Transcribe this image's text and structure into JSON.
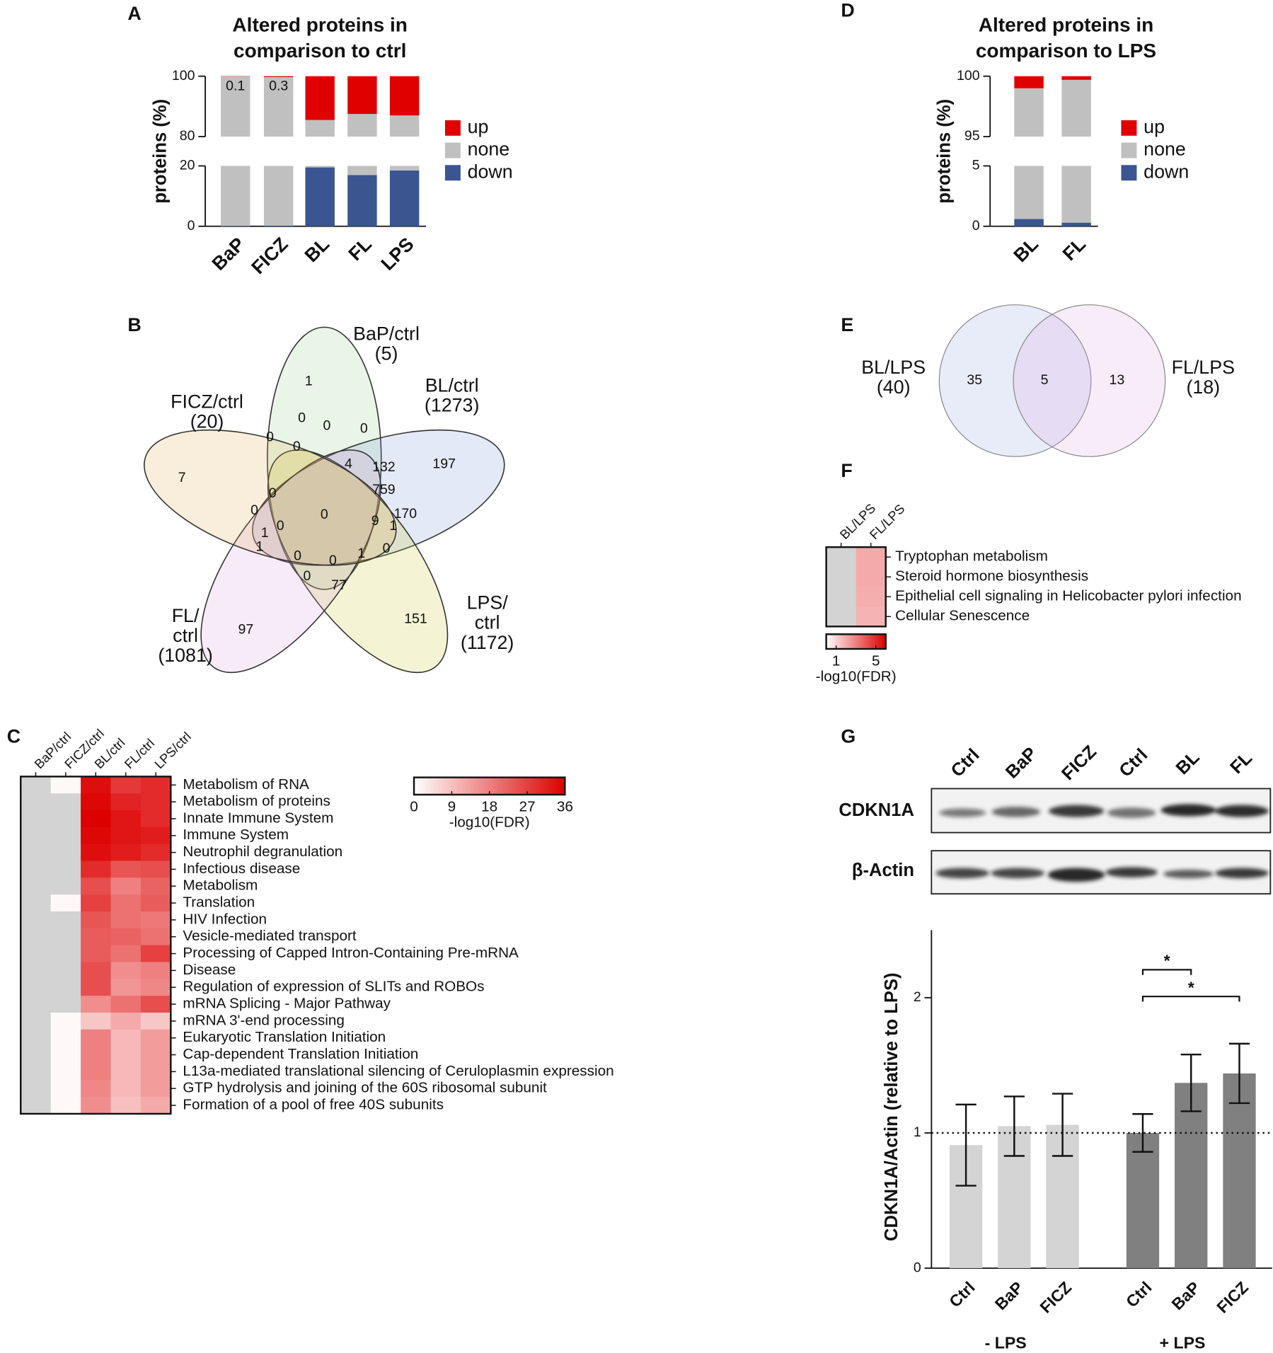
{
  "panel_labels": [
    "A",
    "B",
    "C",
    "D",
    "E",
    "F",
    "G"
  ],
  "chart_data": [
    {
      "type": "bar",
      "stacked": true,
      "title": [
        "Altered proteins in",
        "comparison to ctrl"
      ],
      "ylabel": "proteins (%)",
      "categories": [
        "BaP",
        "FICZ",
        "BL",
        "FL",
        "LPS"
      ],
      "series": [
        {
          "name": "up",
          "color": "#e00000",
          "values": [
            0.1,
            0.3,
            14.5,
            12.5,
            13
          ]
        },
        {
          "name": "none",
          "color": "#c0c0c0",
          "values": [
            99.8,
            99.5,
            66,
            70.5,
            68.5
          ]
        },
        {
          "name": "down",
          "color": "#3a5590",
          "values": [
            0.1,
            0.2,
            19.5,
            17,
            18.5
          ]
        }
      ],
      "ylim": [
        0,
        100
      ],
      "ybreak": [
        20,
        80
      ],
      "yticks": [
        0,
        20,
        80,
        100
      ],
      "data_labels": true
    },
    {
      "type": "heatmap",
      "columns": [
        "BaP/ctrl",
        "FICZ/ctrl",
        "BL/ctrl",
        "FL/ctrl",
        "LPS/ctrl"
      ],
      "rows": [
        "Metabolism of RNA",
        "Metabolism of proteins",
        "Innate Immune System",
        "Immune System",
        "Neutrophil degranulation",
        "Infectious disease",
        "Metabolism",
        "Translation",
        "HIV Infection",
        "Vesicle-mediated transport",
        "Processing of Capped Intron-Containing Pre-mRNA",
        "Disease",
        "Regulation of expression of SLITs and ROBOs",
        "mRNA Splicing - Major Pathway",
        "mRNA 3'-end processing",
        "Eukaryotic Translation Initiation",
        "Cap-dependent Translation Initiation",
        "L13a-mediated translational silencing of Ceruloplasmin expression",
        "GTP hydrolysis and joining of the 60S ribosomal subunit",
        "Formation of a pool of free 40S subunits"
      ],
      "values": [
        [
          null,
          1,
          34,
          28,
          30
        ],
        [
          null,
          null,
          35,
          31,
          30
        ],
        [
          null,
          null,
          36,
          33,
          30
        ],
        [
          null,
          null,
          35,
          33,
          32
        ],
        [
          null,
          null,
          34,
          32,
          30
        ],
        [
          null,
          null,
          30,
          24,
          25
        ],
        [
          null,
          null,
          25,
          18,
          22
        ],
        [
          null,
          1,
          27,
          20,
          23
        ],
        [
          null,
          null,
          24,
          20,
          19
        ],
        [
          null,
          null,
          23,
          22,
          20
        ],
        [
          null,
          null,
          23,
          20,
          27
        ],
        [
          null,
          null,
          25,
          16,
          18
        ],
        [
          null,
          null,
          25,
          15,
          17
        ],
        [
          null,
          null,
          16,
          20,
          25
        ],
        [
          null,
          1,
          8,
          12,
          8
        ],
        [
          null,
          1,
          18,
          10,
          14
        ],
        [
          null,
          1,
          18,
          10,
          14
        ],
        [
          null,
          1,
          18,
          10,
          14
        ],
        [
          null,
          1,
          17,
          10,
          14
        ],
        [
          null,
          1,
          16,
          9,
          12
        ]
      ],
      "clim": [
        0,
        36
      ],
      "cticks": [
        0,
        9,
        18,
        27,
        36
      ],
      "clabel": "-log10(FDR)",
      "colors": [
        "#ffffff",
        "#dd0000"
      ],
      "na_color": "#d3d3d3"
    },
    {
      "type": "bar",
      "stacked": true,
      "title": [
        "Altered proteins in",
        "comparison to LPS"
      ],
      "ylabel": "proteins (%)",
      "categories": [
        "BL",
        "FL"
      ],
      "series": [
        {
          "name": "up",
          "color": "#e00000",
          "values": [
            1,
            0.3
          ]
        },
        {
          "name": "none",
          "color": "#c0c0c0",
          "values": [
            98.4,
            99.4
          ]
        },
        {
          "name": "down",
          "color": "#3a5590",
          "values": [
            0.6,
            0.3
          ]
        }
      ],
      "ylim": [
        0,
        100
      ],
      "ybreak": [
        5,
        95
      ],
      "yticks": [
        0,
        5,
        95,
        100
      ]
    },
    {
      "type": "heatmap",
      "columns": [
        "BL/LPS",
        "FL/LPS"
      ],
      "rows": [
        "Tryptophan metabolism",
        "Steroid hormone biosynthesis",
        "Epithelial cell signaling in Helicobacter pylori infection",
        "Cellular Senescence"
      ],
      "values": [
        [
          null,
          2
        ],
        [
          null,
          2
        ],
        [
          null,
          1.9
        ],
        [
          null,
          1.8
        ]
      ],
      "clim": [
        0,
        6
      ],
      "cticks": [
        1,
        5
      ],
      "clabel": "-log10(FDR)",
      "colors": [
        "#ffffff",
        "#dd0000"
      ],
      "na_color": "#d3d3d3"
    },
    {
      "type": "errorbar",
      "ylabel": "CDKN1A/Actin (relative to LPS)",
      "series": [
        {
          "name": "- LPS",
          "color": "#d4d4d4",
          "categories": [
            "Ctrl",
            "BaP",
            "FICZ"
          ],
          "values": [
            0.91,
            1.05,
            1.06
          ],
          "errors": [
            0.3,
            0.22,
            0.23
          ]
        },
        {
          "name": "+ LPS",
          "color": "#808080",
          "categories": [
            "Ctrl",
            "BaP",
            "FICZ"
          ],
          "values": [
            1.0,
            1.37,
            1.44
          ],
          "errors": [
            0.14,
            0.21,
            0.22
          ],
          "significance": [
            {
              "pair": [
                0,
                1
              ],
              "label": "*"
            },
            {
              "pair": [
                0,
                2
              ],
              "label": "*"
            }
          ]
        }
      ],
      "ylim": [
        0,
        2.5
      ],
      "yticks": [
        0,
        1,
        2
      ],
      "hline": 1
    }
  ],
  "venn_b": {
    "sets": [
      {
        "label": [
          "BaP/ctrl",
          "(5)"
        ],
        "color": "#8fcf86"
      },
      {
        "label": [
          "BL/ctrl",
          "(1273)"
        ],
        "color": "#7a8fd8"
      },
      {
        "label": [
          "LPS/",
          "ctrl",
          "(1172)"
        ],
        "color": "#c9c92a"
      },
      {
        "label": [
          "FL/",
          "ctrl",
          "(1081)"
        ],
        "color": "#d79ad8"
      },
      {
        "label": [
          "FICZ/ctrl",
          "(20)"
        ],
        "color": "#e0a84c"
      }
    ],
    "regions": [
      1,
      197,
      151,
      97,
      7,
      0,
      0,
      0,
      0,
      0,
      4,
      132,
      759,
      0,
      0,
      0,
      9,
      170,
      1,
      1,
      0,
      1,
      0,
      0,
      0,
      1,
      0,
      77
    ]
  },
  "venn_e": {
    "sets": [
      {
        "label": [
          "BL/LPS",
          "(40)"
        ],
        "color": "#7f93df"
      },
      {
        "label": [
          "FL/LPS",
          "(18)"
        ],
        "color": "#df97df"
      }
    ],
    "regions": [
      35,
      5,
      13
    ]
  },
  "blot": {
    "lanes": [
      "Ctrl",
      "BaP",
      "FICZ",
      "Ctrl",
      "BL",
      "FL"
    ],
    "rows": [
      "CDKN1A",
      "β-Actin"
    ]
  }
}
